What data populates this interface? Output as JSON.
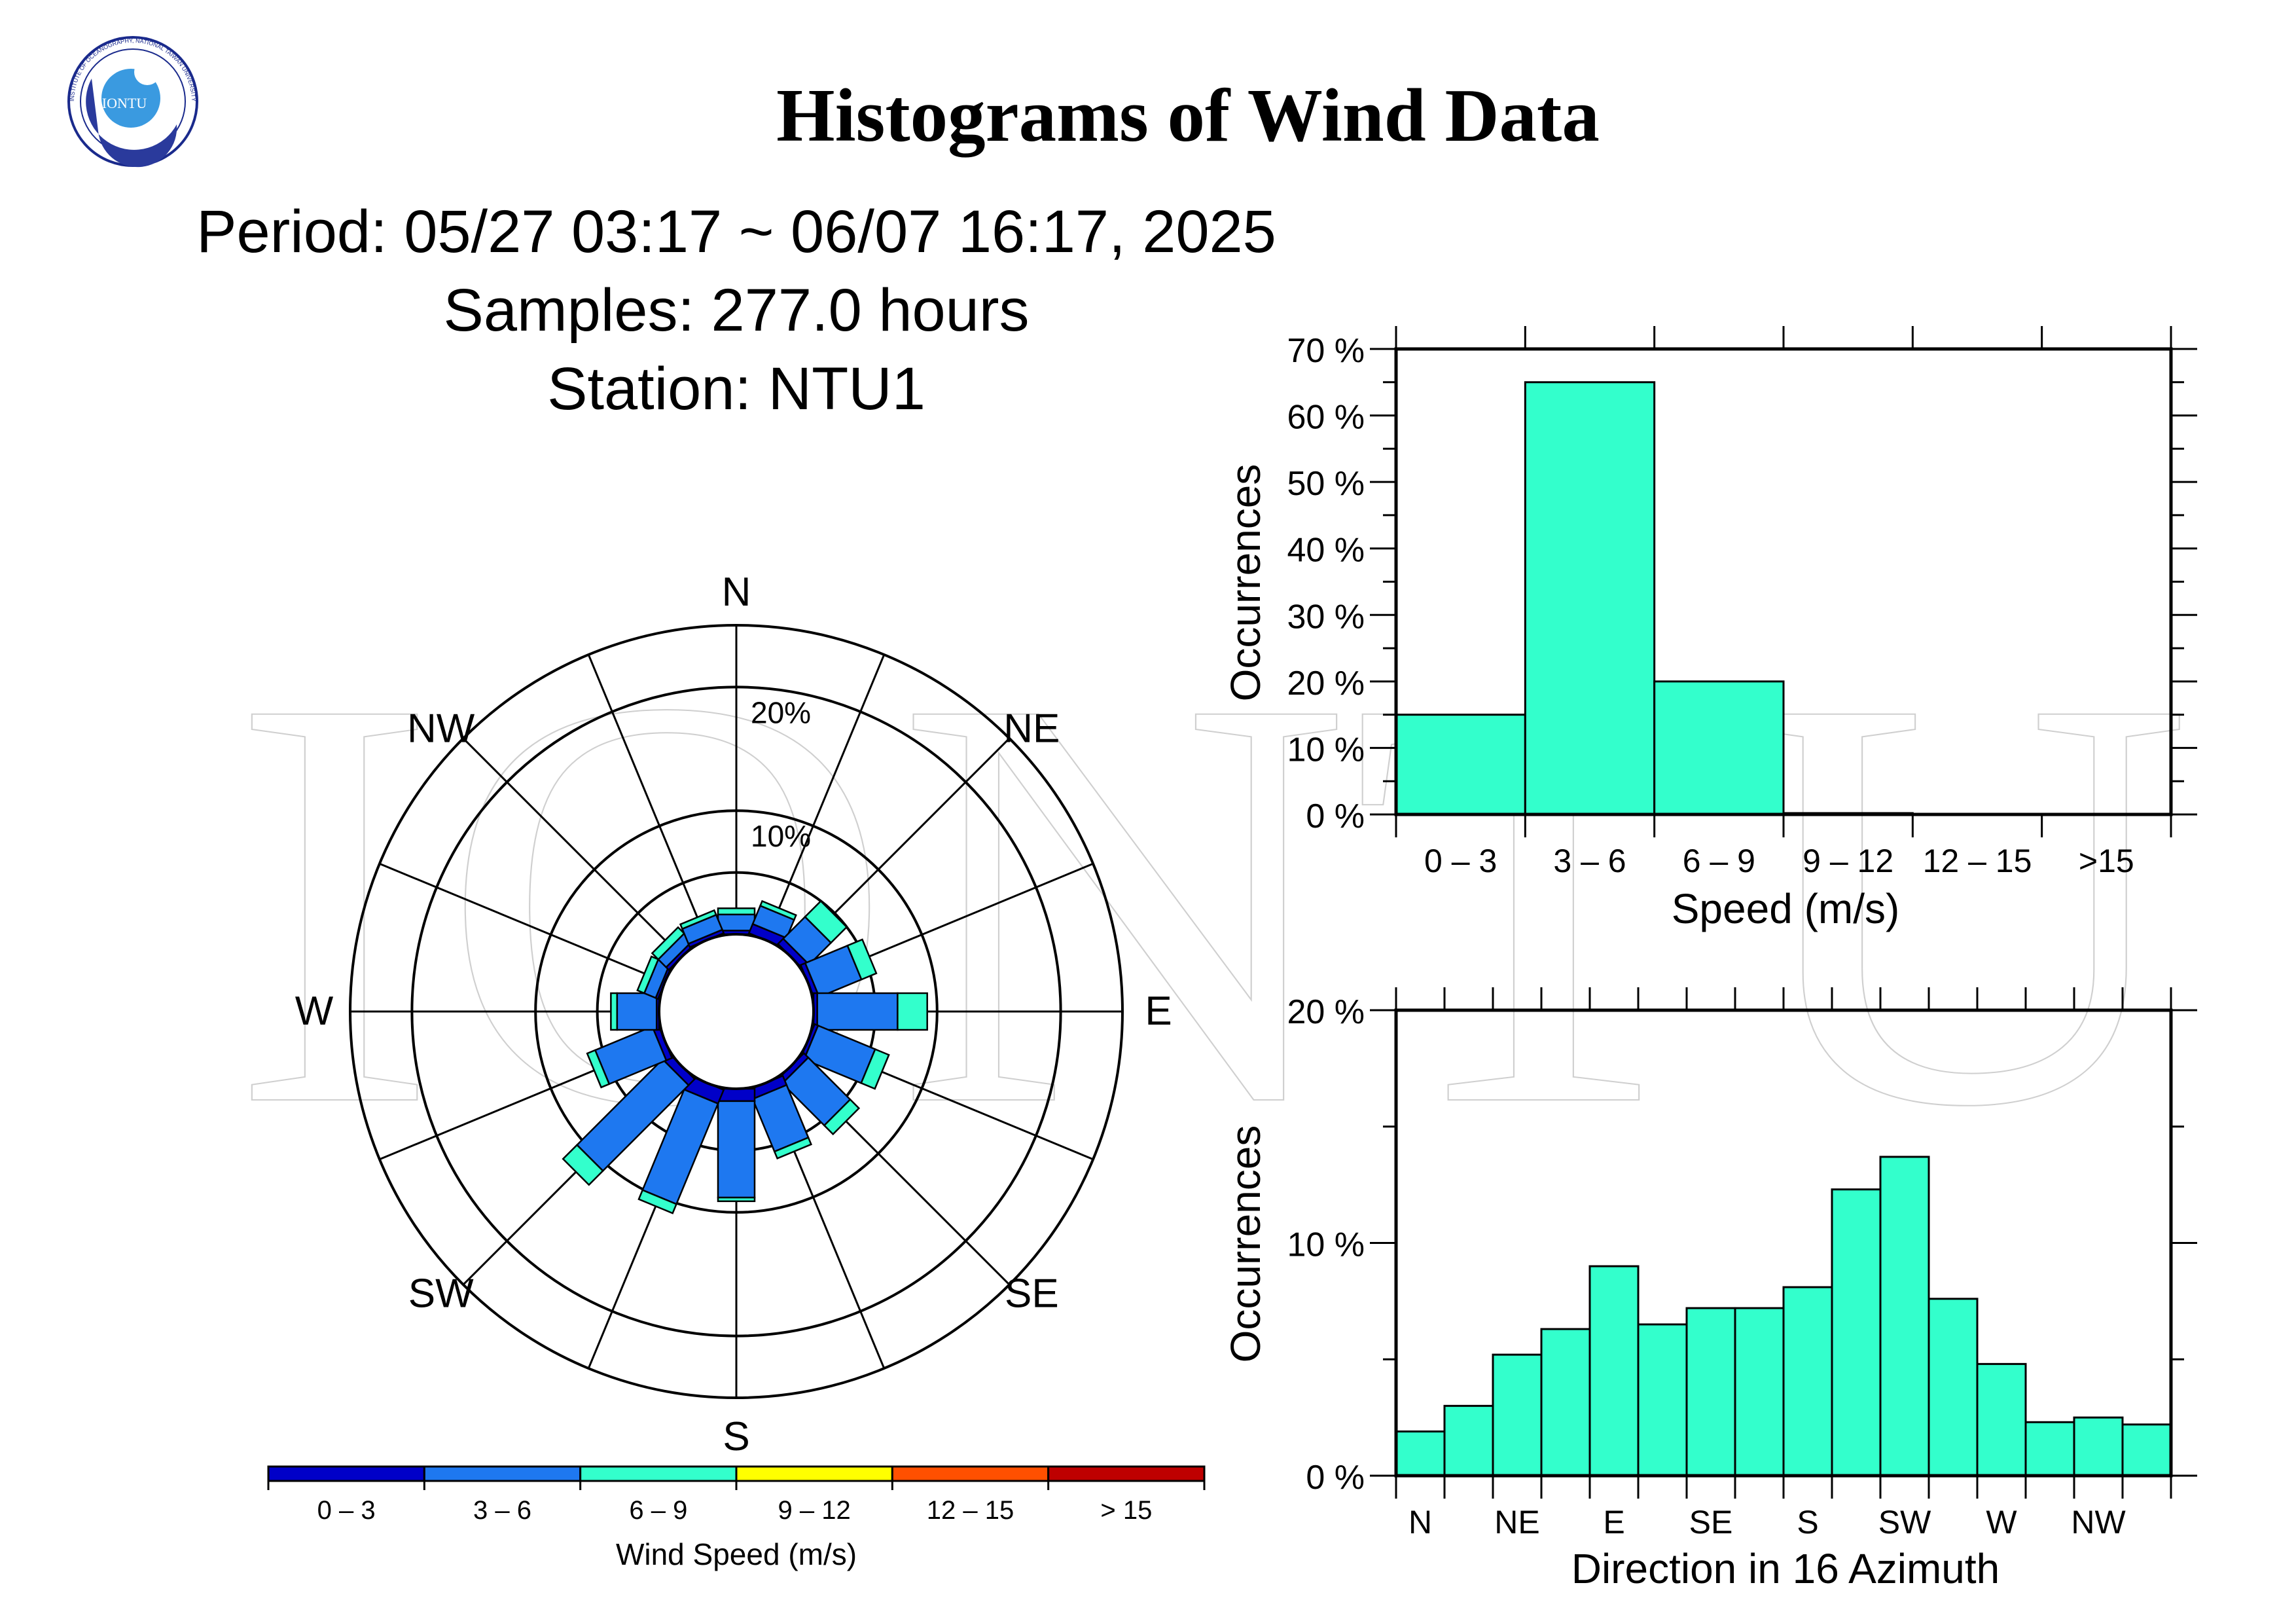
{
  "header": {
    "logo_text": "IONTU",
    "logo_ring_text": "INSTITUTE OF OCEANOGRAPHY, NATIONAL TAIWAN UNIVERSITY",
    "watermark": "IONTU",
    "title": "Histograms of Wind Data",
    "period": "Period: 05/27 03:17 ~ 06/07 16:17, 2025",
    "samples": "Samples:  277.0 hours",
    "station": "Station: NTU1"
  },
  "colors": {
    "bar_fill": "#33ffcc",
    "speed_classes": [
      "#0000c8",
      "#1e78f0",
      "#33ffcc",
      "#ffff00",
      "#ff5000",
      "#be0000"
    ]
  },
  "chart_data": [
    {
      "type": "wind-rose",
      "directions": [
        "N",
        "NNE",
        "NE",
        "ENE",
        "E",
        "ESE",
        "SE",
        "SSE",
        "S",
        "SSW",
        "SW",
        "WSW",
        "W",
        "WNW",
        "NW",
        "NNW"
      ],
      "direction_labels": [
        "N",
        "NE",
        "E",
        "SE",
        "S",
        "SW",
        "W",
        "NW"
      ],
      "ring_labels": [
        "10%",
        "20%"
      ],
      "rmax_percent": 25,
      "legend_title": "Wind Speed (m/s)",
      "speed_classes": [
        "0 –  3",
        "3 –  6",
        "6 –  9",
        "9 – 12",
        "12 – 15",
        "> 15"
      ],
      "series": [
        {
          "name": "0 –  3",
          "values": [
            0.3,
            0.8,
            0.6,
            0.4,
            0.3,
            0.3,
            0.5,
            0.8,
            1.0,
            1.2,
            0.7,
            0.5,
            0.2,
            0.2,
            0.3,
            0.3
          ]
        },
        {
          "name": "3 –  6",
          "values": [
            1.3,
            1.6,
            2.5,
            3.7,
            6.5,
            5.0,
            4.8,
            4.6,
            7.8,
            8.8,
            9.8,
            5.0,
            3.2,
            1.0,
            0.9,
            1.3
          ]
        },
        {
          "name": "6 –  9",
          "values": [
            0.5,
            0.4,
            1.8,
            1.3,
            2.4,
            1.2,
            1.0,
            0.6,
            0.3,
            0.8,
            1.6,
            0.7,
            0.5,
            0.6,
            0.7,
            0.4
          ]
        }
      ]
    },
    {
      "type": "bar",
      "categories": [
        "0 – 3",
        "3 – 6",
        "6 – 9",
        "9 – 12",
        "12 – 15",
        ">15"
      ],
      "values": [
        15,
        65,
        20,
        0.2,
        0,
        0
      ],
      "xlabel": "Speed (m/s)",
      "ylabel": "Occurrences",
      "ylim": [
        0,
        70
      ],
      "yticks": [
        "0 %",
        "10 %",
        "20 %",
        "30 %",
        "40 %",
        "50 %",
        "60 %",
        "70 %"
      ]
    },
    {
      "type": "bar",
      "categories": [
        "N",
        "NNE",
        "NE",
        "ENE",
        "E",
        "ESE",
        "SE",
        "SSE",
        "S",
        "SSW",
        "SW",
        "WSW",
        "W",
        "WNW",
        "NW",
        "NNW"
      ],
      "tick_labels": [
        "N",
        "NE",
        "E",
        "SE",
        "S",
        "SW",
        "W",
        "NW"
      ],
      "values": [
        1.9,
        3.0,
        5.2,
        6.3,
        9.0,
        6.5,
        7.2,
        7.2,
        8.1,
        12.3,
        13.7,
        7.6,
        4.8,
        2.3,
        2.5,
        2.2
      ],
      "xlabel": "Direction in 16 Azimuth",
      "ylabel": "Occurrences",
      "ylim": [
        0,
        20
      ],
      "yticks": [
        "0 %",
        "10 %",
        "20 %"
      ]
    }
  ]
}
